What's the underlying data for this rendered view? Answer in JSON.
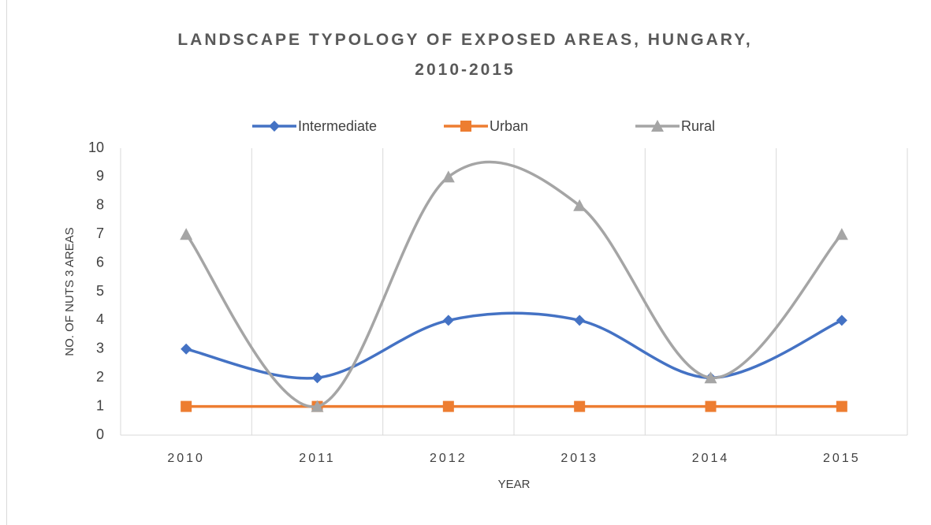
{
  "chart_data": {
    "type": "line",
    "title": "LANDSCAPE TYPOLOGY OF EXPOSED AREAS, HUNGARY, 2010-2015",
    "x_label": "YEAR",
    "y_label": "NO. OF NUTS 3 AREAS",
    "categories": [
      "2010",
      "2011",
      "2012",
      "2013",
      "2014",
      "2015"
    ],
    "series": [
      {
        "name": "Intermediate",
        "color": "#4472c4",
        "marker": "diamond",
        "values": [
          3,
          2,
          4,
          4,
          2,
          4
        ]
      },
      {
        "name": "Urban",
        "color": "#ed7d31",
        "marker": "square",
        "values": [
          1,
          1,
          1,
          1,
          1,
          1
        ]
      },
      {
        "name": "Rural",
        "color": "#a5a5a5",
        "marker": "triangle",
        "values": [
          7,
          1,
          9,
          8,
          2,
          7
        ]
      }
    ],
    "ylim": [
      0,
      10
    ],
    "yticks": [
      0,
      1,
      2,
      3,
      4,
      5,
      6,
      7,
      8,
      9,
      10
    ],
    "smooth": true,
    "grid": true,
    "legend": "top"
  }
}
